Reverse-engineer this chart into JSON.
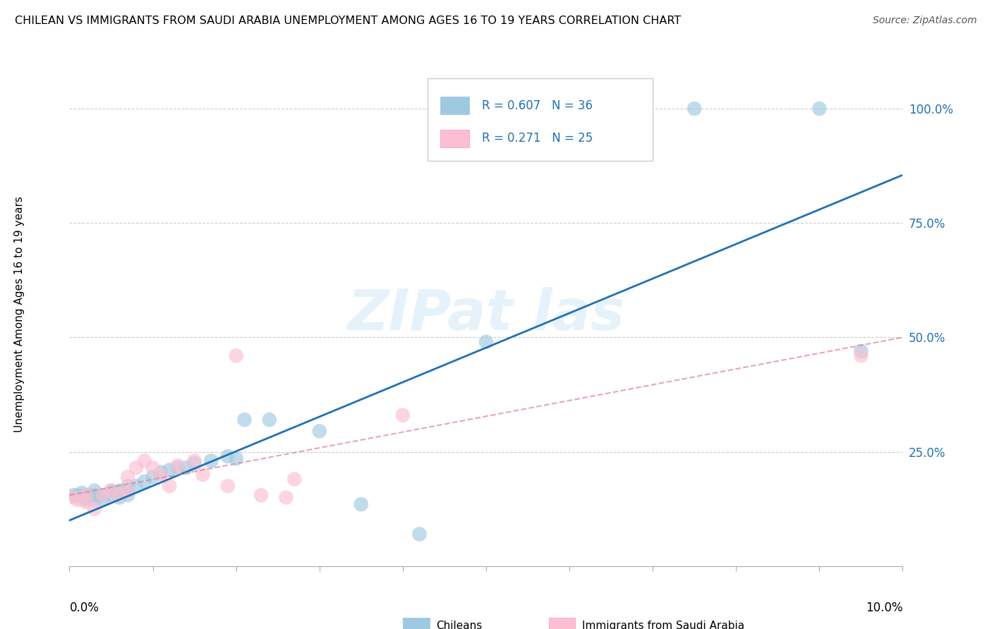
{
  "title": "CHILEAN VS IMMIGRANTS FROM SAUDI ARABIA UNEMPLOYMENT AMONG AGES 16 TO 19 YEARS CORRELATION CHART",
  "source": "Source: ZipAtlas.com",
  "ylabel": "Unemployment Among Ages 16 to 19 years",
  "ytick_labels": [
    "100.0%",
    "75.0%",
    "50.0%",
    "25.0%"
  ],
  "ytick_values": [
    1.0,
    0.75,
    0.5,
    0.25
  ],
  "legend_label1": "Chileans",
  "legend_label2": "Immigrants from Saudi Arabia",
  "r1": 0.607,
  "n1": 36,
  "r2": 0.271,
  "n2": 25,
  "color_blue": "#9ecae1",
  "color_pink": "#fcbfd2",
  "color_line_blue": "#2171b5",
  "color_line_pink": "#e08090",
  "blue_x": [
    0.0005,
    0.001,
    0.0015,
    0.002,
    0.002,
    0.003,
    0.003,
    0.003,
    0.004,
    0.004,
    0.005,
    0.005,
    0.006,
    0.006,
    0.007,
    0.007,
    0.008,
    0.009,
    0.01,
    0.011,
    0.012,
    0.013,
    0.014,
    0.015,
    0.017,
    0.019,
    0.02,
    0.021,
    0.024,
    0.03,
    0.035,
    0.042,
    0.05,
    0.075,
    0.09,
    0.095
  ],
  "blue_y": [
    0.155,
    0.155,
    0.16,
    0.145,
    0.155,
    0.145,
    0.155,
    0.165,
    0.145,
    0.155,
    0.155,
    0.165,
    0.15,
    0.165,
    0.155,
    0.175,
    0.175,
    0.185,
    0.195,
    0.205,
    0.21,
    0.215,
    0.215,
    0.225,
    0.23,
    0.24,
    0.235,
    0.32,
    0.32,
    0.295,
    0.135,
    0.07,
    0.49,
    1.0,
    1.0,
    0.47
  ],
  "pink_x": [
    0.0005,
    0.001,
    0.002,
    0.002,
    0.003,
    0.004,
    0.005,
    0.006,
    0.007,
    0.007,
    0.008,
    0.009,
    0.01,
    0.011,
    0.012,
    0.013,
    0.015,
    0.016,
    0.019,
    0.02,
    0.023,
    0.026,
    0.027,
    0.04,
    0.095
  ],
  "pink_y": [
    0.15,
    0.145,
    0.14,
    0.155,
    0.125,
    0.155,
    0.165,
    0.155,
    0.165,
    0.195,
    0.215,
    0.23,
    0.215,
    0.2,
    0.175,
    0.22,
    0.23,
    0.2,
    0.175,
    0.46,
    0.155,
    0.15,
    0.19,
    0.33,
    0.46
  ],
  "xlim": [
    0.0,
    0.1
  ],
  "ylim": [
    0.0,
    1.1
  ],
  "blue_line_x0": 0.0,
  "blue_line_y0": 0.1,
  "blue_line_x1": 0.1,
  "blue_line_y1": 0.855,
  "pink_line_x0": 0.0,
  "pink_line_y0": 0.155,
  "pink_line_x1": 0.1,
  "pink_line_y1": 0.5
}
